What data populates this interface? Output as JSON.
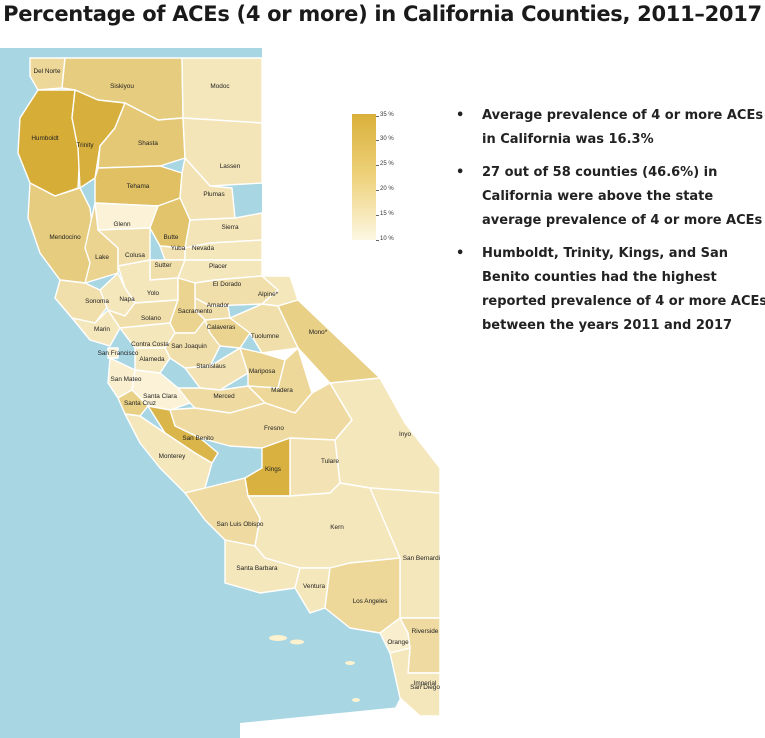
{
  "title": "Percentage of ACEs (4 or more) in California Counties, 2011–2017",
  "colors": {
    "ocean": "#a8d6e3",
    "land_light": "#fdf6e0",
    "land_dark": "#d4a92e"
  },
  "legend": {
    "ticks": [
      "35 %",
      "30 %",
      "25 %",
      "20 %",
      "15 %",
      "10 %"
    ]
  },
  "bullets": [
    "Average prevalence of 4 or more ACEs\nin California was 16.3%",
    "27 out of 58 counties (46.6%) in\nCalifornia were above the state\naverage prevalence of 4 or more ACEs",
    "Humboldt, Trinity, Kings, and San\nBenito counties had the highest\nreported prevalence of 4 or more ACEs\nbetween the years 2011 and 2017"
  ],
  "counties": [
    {
      "name": "Del Norte",
      "level": 0.4
    },
    {
      "name": "Siskiyou",
      "level": 0.55
    },
    {
      "name": "Modoc",
      "level": 0.2
    },
    {
      "name": "Humboldt",
      "level": 0.95
    },
    {
      "name": "Trinity",
      "level": 0.92
    },
    {
      "name": "Shasta",
      "level": 0.6
    },
    {
      "name": "Lassen",
      "level": 0.22
    },
    {
      "name": "Tehama",
      "level": 0.7
    },
    {
      "name": "Plumas",
      "level": 0.25
    },
    {
      "name": "Glenn",
      "level": 0.05
    },
    {
      "name": "Butte",
      "level": 0.65
    },
    {
      "name": "Sierra",
      "level": 0.22
    },
    {
      "name": "Mendocino",
      "level": 0.55
    },
    {
      "name": "Lake",
      "level": 0.45
    },
    {
      "name": "Colusa",
      "level": 0.3
    },
    {
      "name": "Yuba",
      "level": 0.25
    },
    {
      "name": "Nevada",
      "level": 0.2
    },
    {
      "name": "Sutter",
      "level": 0.3
    },
    {
      "name": "Placer",
      "level": 0.2
    },
    {
      "name": "El Dorado",
      "level": 0.3
    },
    {
      "name": "Alpine*",
      "level": 0.2
    },
    {
      "name": "Yolo",
      "level": 0.2
    },
    {
      "name": "Sonoma",
      "level": 0.3
    },
    {
      "name": "Napa",
      "level": 0.2
    },
    {
      "name": "Amador",
      "level": 0.3
    },
    {
      "name": "Solano",
      "level": 0.3
    },
    {
      "name": "Sacramento",
      "level": 0.45
    },
    {
      "name": "Mono*",
      "level": 0.5
    },
    {
      "name": "Marin",
      "level": 0.2
    },
    {
      "name": "Calaveras",
      "level": 0.45
    },
    {
      "name": "Tuolumne",
      "level": 0.3
    },
    {
      "name": "Contra Costa",
      "level": 0.2
    },
    {
      "name": "San Joaquin",
      "level": 0.3
    },
    {
      "name": "San Francisco",
      "level": 0.1
    },
    {
      "name": "Alameda",
      "level": 0.2
    },
    {
      "name": "Stanislaus",
      "level": 0.25
    },
    {
      "name": "Mariposa",
      "level": 0.45
    },
    {
      "name": "San Mateo",
      "level": 0.1
    },
    {
      "name": "Madera",
      "level": 0.4
    },
    {
      "name": "Santa Clara",
      "level": 0.05
    },
    {
      "name": "Merced",
      "level": 0.35
    },
    {
      "name": "Santa Cruz",
      "level": 0.5
    },
    {
      "name": "Fresno",
      "level": 0.35
    },
    {
      "name": "San Benito",
      "level": 0.85
    },
    {
      "name": "Inyo",
      "level": 0.2
    },
    {
      "name": "Monterey",
      "level": 0.2
    },
    {
      "name": "Tulare",
      "level": 0.25
    },
    {
      "name": "Kings",
      "level": 0.9
    },
    {
      "name": "San Luis Obispo",
      "level": 0.35
    },
    {
      "name": "Kern",
      "level": 0.2
    },
    {
      "name": "San Bernardino",
      "level": 0.2
    },
    {
      "name": "Santa Barbara",
      "level": 0.2
    },
    {
      "name": "Ventura",
      "level": 0.2
    },
    {
      "name": "Los Angeles",
      "level": 0.4
    },
    {
      "name": "Orange",
      "level": 0.1
    },
    {
      "name": "Riverside",
      "level": 0.35
    },
    {
      "name": "San Diego",
      "level": 0.2
    },
    {
      "name": "Imperial",
      "level": 0.2
    }
  ]
}
